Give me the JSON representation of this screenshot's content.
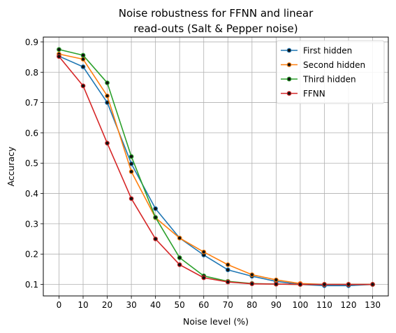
{
  "chart_data": {
    "type": "line",
    "title_lines": [
      "Noise robustness for FFNN and linear",
      "read-outs (Salt & Pepper noise)"
    ],
    "xlabel": "Noise level (%)",
    "ylabel": "Accuracy",
    "x": [
      0,
      10,
      20,
      30,
      40,
      50,
      60,
      70,
      80,
      90,
      100,
      110,
      120,
      130
    ],
    "xticks": [
      "0",
      "10",
      "20",
      "30",
      "40",
      "50",
      "60",
      "70",
      "80",
      "90",
      "100",
      "110",
      "120",
      "130"
    ],
    "yticks": [
      "0.1",
      "0.2",
      "0.3",
      "0.4",
      "0.5",
      "0.6",
      "0.7",
      "0.8",
      "0.9"
    ],
    "ylim": [
      0.062,
      0.916
    ],
    "xlim": [
      -6.5,
      136.5
    ],
    "grid": true,
    "legend_position": "upper right",
    "series": [
      {
        "name": "First hidden",
        "color": "#1f77b4",
        "values": [
          0.853,
          0.818,
          0.7,
          0.498,
          0.35,
          0.253,
          0.197,
          0.148,
          0.127,
          0.11,
          0.1,
          0.096,
          0.096,
          0.1
        ]
      },
      {
        "name": "Second hidden",
        "color": "#ff7f0e",
        "values": [
          0.86,
          0.843,
          0.722,
          0.472,
          0.32,
          0.253,
          0.207,
          0.165,
          0.132,
          0.115,
          0.103,
          0.1,
          0.1,
          0.1
        ]
      },
      {
        "name": "Third hidden",
        "color": "#2ca02c",
        "values": [
          0.875,
          0.856,
          0.765,
          0.522,
          0.321,
          0.188,
          0.128,
          0.11,
          0.103,
          0.101,
          0.1,
          0.1,
          0.1,
          0.1
        ]
      },
      {
        "name": "FFNN",
        "color": "#d62728",
        "values": [
          0.852,
          0.755,
          0.566,
          0.383,
          0.25,
          0.165,
          0.122,
          0.108,
          0.102,
          0.101,
          0.1,
          0.1,
          0.1,
          0.1
        ]
      }
    ]
  }
}
